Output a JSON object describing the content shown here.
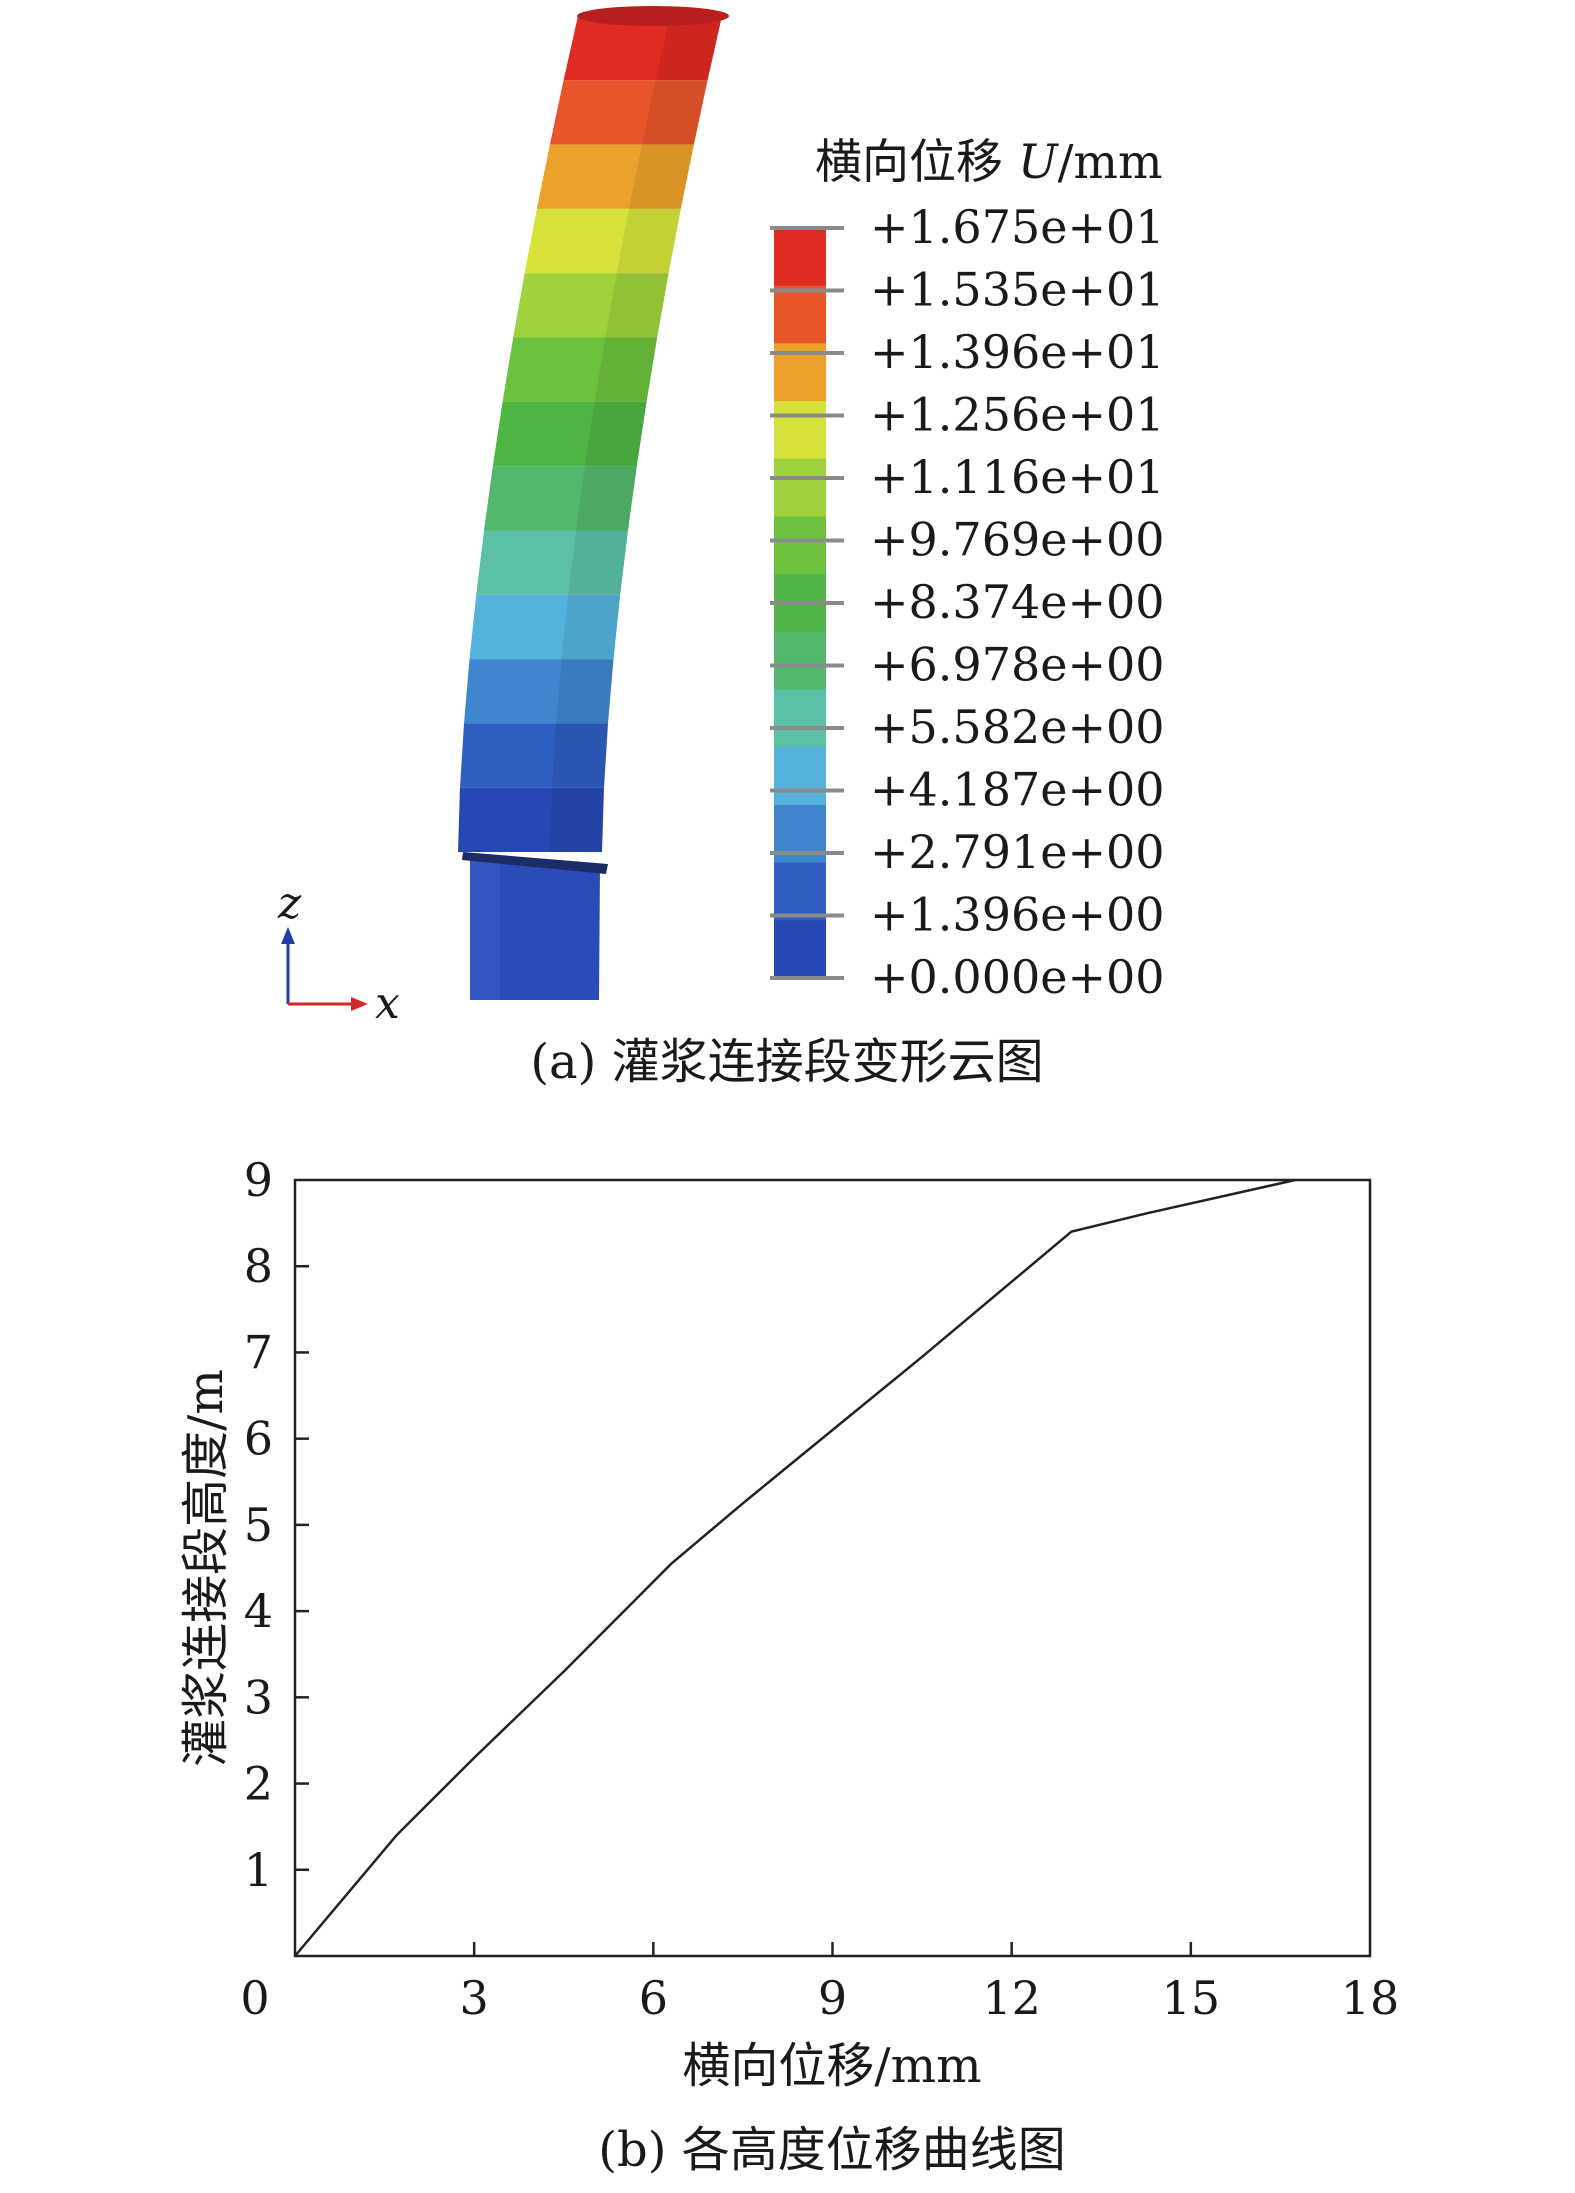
{
  "panel_a": {
    "legend_title": "横向位移 ",
    "legend_title_var": "U",
    "legend_title_unit": "/mm",
    "legend_values": [
      "+1.675e+01",
      "+1.535e+01",
      "+1.396e+01",
      "+1.256e+01",
      "+1.116e+01",
      "+9.769e+00",
      "+8.374e+00",
      "+6.978e+00",
      "+5.582e+00",
      "+4.187e+00",
      "+2.791e+00",
      "+1.396e+00",
      "+0.000e+00"
    ],
    "legend_colors": [
      "#e02a22",
      "#e8552a",
      "#eba22a",
      "#d6e23a",
      "#9fd23c",
      "#6cc23c",
      "#4eb544",
      "#52b86c",
      "#5cc0a6",
      "#54b2dc",
      "#3f86cf",
      "#2e5ec2",
      "#2648b5"
    ],
    "axis_labels": {
      "z": "z",
      "x": "x"
    },
    "caption": "(a) 灌浆连接段变形云图"
  },
  "chart_data": {
    "type": "line",
    "title": "",
    "xlabel": "横向位移/mm",
    "ylabel": "灌浆连接段高度/m",
    "xlim": [
      0,
      18
    ],
    "ylim": [
      0,
      9
    ],
    "xticks": [
      0,
      3,
      6,
      9,
      12,
      15,
      18
    ],
    "yticks": [
      1,
      2,
      3,
      4,
      5,
      6,
      7,
      8,
      9
    ],
    "series": [
      {
        "x": [
          0,
          1.7,
          3.0,
          4.5,
          6.3,
          7.5,
          9.0,
          10.5,
          13.0,
          14.3,
          16.75
        ],
        "y": [
          0,
          1.4,
          2.3,
          3.3,
          4.55,
          5.25,
          6.1,
          6.95,
          8.4,
          8.62,
          9.0
        ],
        "color": "#222222"
      }
    ],
    "grid": false,
    "caption": "(b) 各高度位移曲线图"
  }
}
